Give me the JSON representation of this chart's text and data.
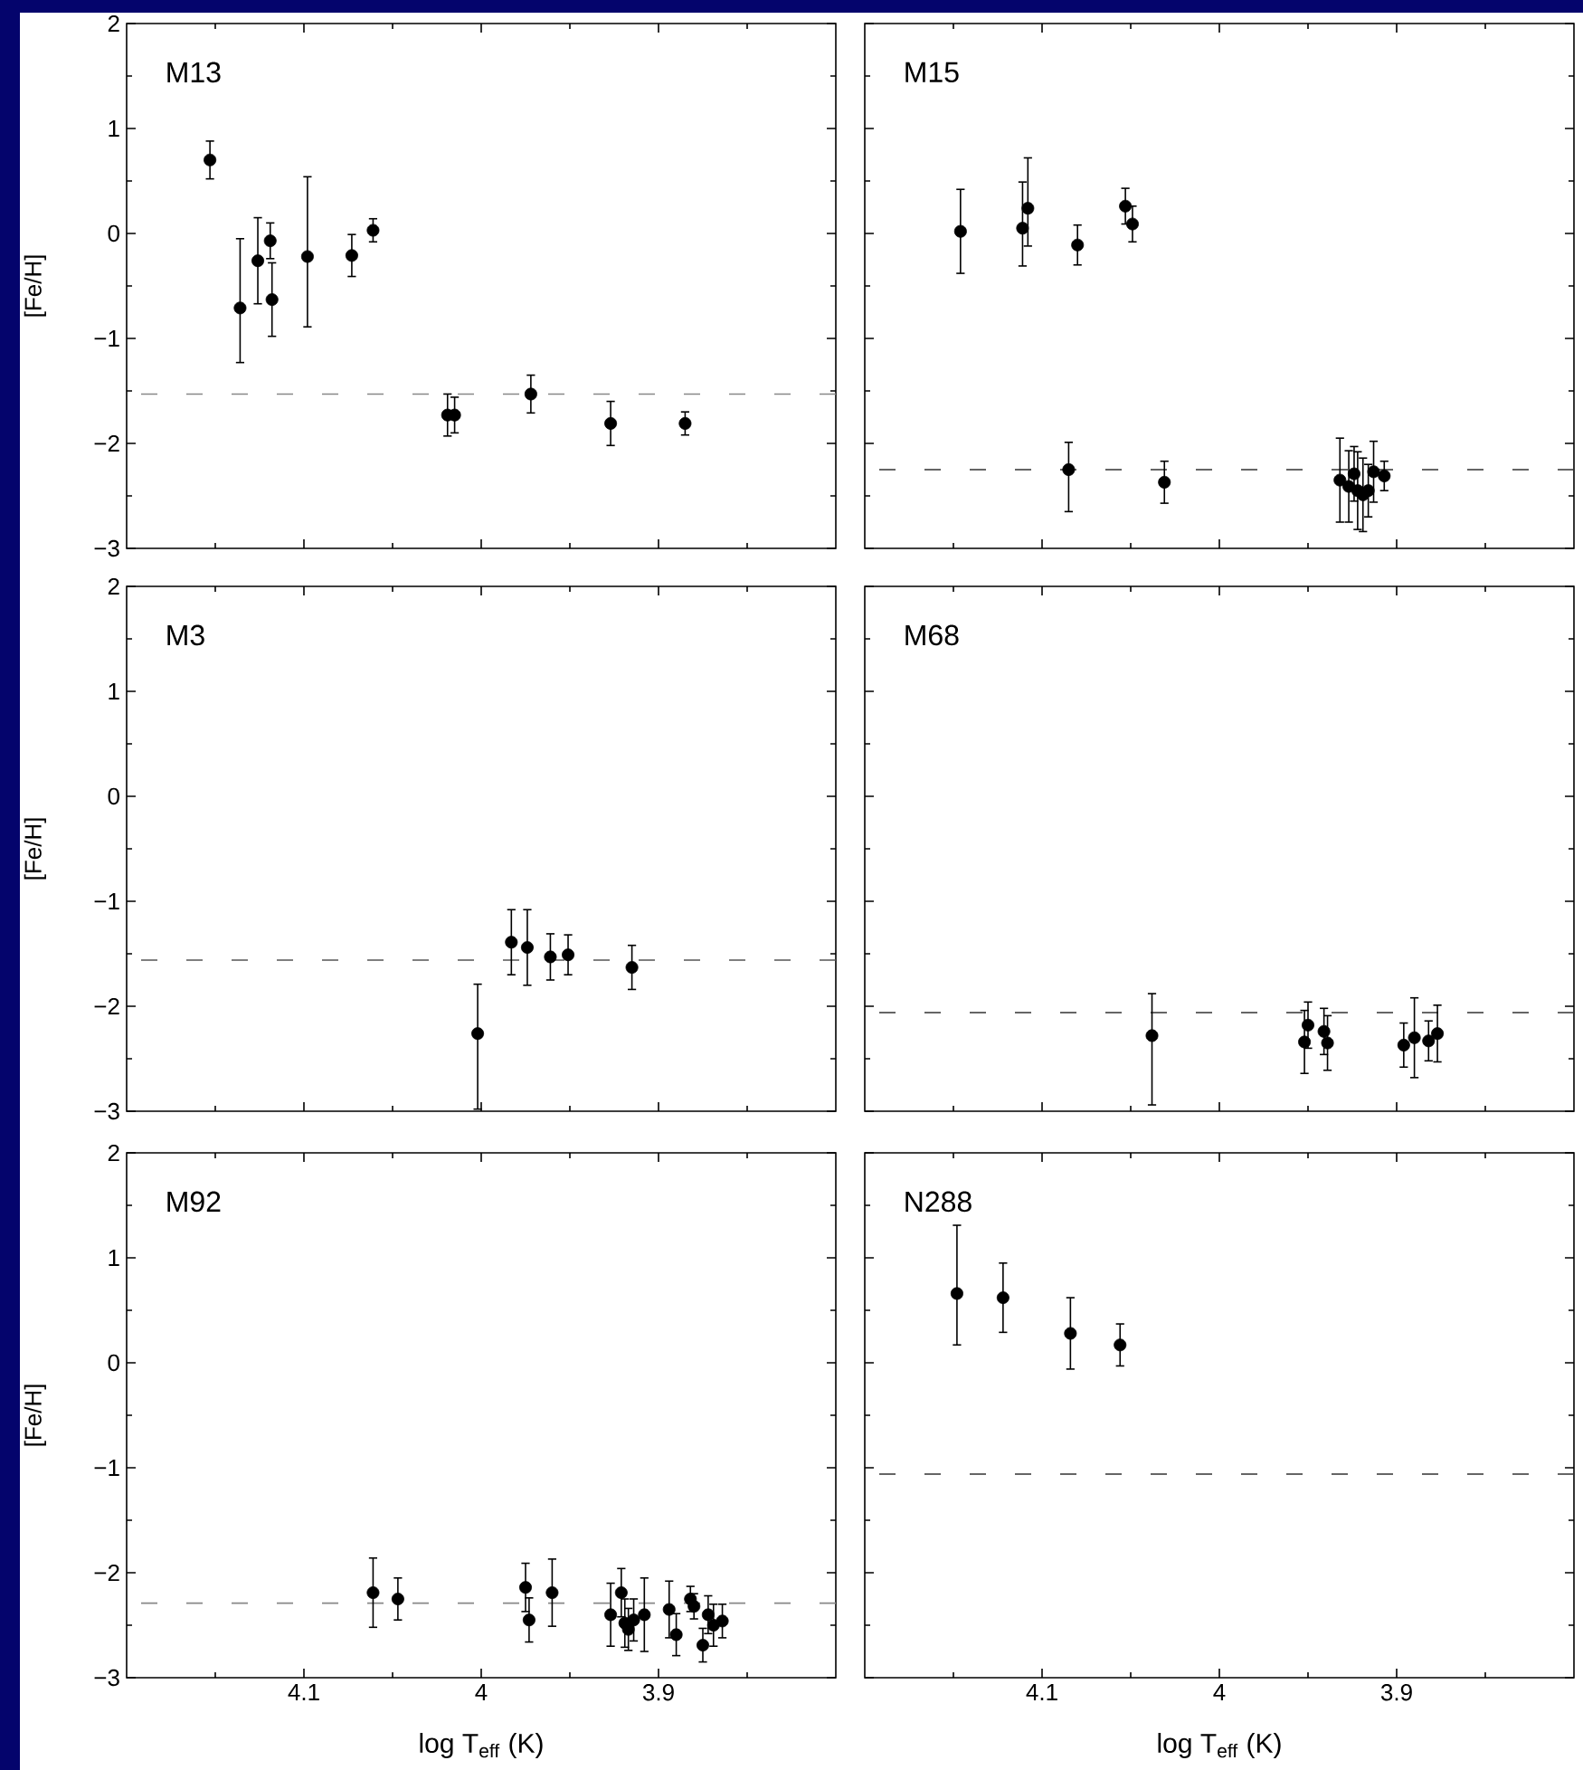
{
  "chart_data": [
    {
      "type": "scatter",
      "title": "M13",
      "ylabel": "[Fe/H]",
      "tick_labels": "y",
      "xlim": [
        4.2,
        3.8
      ],
      "xticks": [
        {
          "value": 4.15,
          "label": null
        },
        4.1,
        {
          "value": 4.05,
          "label": null
        },
        4,
        {
          "value": 3.95,
          "label": null
        },
        3.9,
        {
          "value": 3.85,
          "label": null
        }
      ],
      "ylim": [
        -3,
        2
      ],
      "yticks": [
        {
          "value": -3,
          "label": "−3"
        },
        {
          "value": -2.5,
          "label": null
        },
        {
          "value": -2,
          "label": "−2"
        },
        {
          "value": -1.5,
          "label": null
        },
        {
          "value": -1,
          "label": "−1"
        },
        {
          "value": -0.5,
          "label": null
        },
        0,
        {
          "value": 0.5,
          "label": null
        },
        1,
        {
          "value": 1.5,
          "label": null
        },
        2
      ],
      "ref_lines": [
        {
          "axis": "y",
          "value": -1.53,
          "line_style": "dashed",
          "color": "#888888"
        }
      ],
      "x": [
        4.153,
        4.136,
        4.126,
        4.119,
        4.118,
        4.098,
        4.073,
        4.061,
        4.019,
        4.015,
        3.972,
        3.927,
        3.885
      ],
      "series": [
        {
          "color": "#000000",
          "marker": "circle",
          "values": [
            0.7,
            -0.71,
            -0.26,
            -0.07,
            -0.63,
            -0.22,
            -0.21,
            0.03,
            -1.73,
            -1.73,
            -1.53,
            -1.81,
            -1.81
          ],
          "errors": [
            0.18,
            [
              -1.23,
              -0.05
            ],
            0.41,
            0.17,
            0.35,
            [
              -0.89,
              0.54
            ],
            0.2,
            0.11,
            0.2,
            0.17,
            0.18,
            0.21,
            0.11
          ]
        }
      ]
    },
    {
      "type": "scatter",
      "title": "M15",
      "tick_labels": false,
      "xlim": [
        4.2,
        3.8
      ],
      "xticks": [
        {
          "value": 4.15,
          "label": null
        },
        4.1,
        {
          "value": 4.05,
          "label": null
        },
        4,
        {
          "value": 3.95,
          "label": null
        },
        3.9,
        {
          "value": 3.85,
          "label": null
        }
      ],
      "ylim": [
        -3,
        2
      ],
      "yticks": [
        -3,
        {
          "value": -2.5,
          "label": null
        },
        -2,
        {
          "value": -1.5,
          "label": null
        },
        -1,
        {
          "value": -0.5,
          "label": null
        },
        0,
        {
          "value": 0.5,
          "label": null
        },
        1,
        {
          "value": 1.5,
          "label": null
        },
        2
      ],
      "ref_lines": [
        {
          "axis": "y",
          "value": -2.25,
          "line_style": "dashed",
          "color": "#333333"
        }
      ],
      "x": [
        4.146,
        4.111,
        4.108,
        4.08,
        4.053,
        4.049,
        4.085,
        4.031,
        3.932,
        3.927,
        3.924,
        3.922,
        3.919,
        3.916,
        3.913,
        3.907
      ],
      "series": [
        {
          "color": "#000000",
          "marker": "circle",
          "values": [
            0.02,
            0.05,
            0.24,
            -0.11,
            0.26,
            0.09,
            -2.25,
            -2.37,
            -2.35,
            -2.41,
            -2.29,
            -2.45,
            -2.49,
            -2.45,
            -2.27,
            -2.31
          ],
          "errors": [
            0.4,
            [
              -0.31,
              0.49
            ],
            [
              -0.12,
              0.72
            ],
            0.19,
            0.17,
            0.17,
            [
              -2.65,
              -1.99
            ],
            0.2,
            0.4,
            0.34,
            0.26,
            0.37,
            0.35,
            0.25,
            0.29,
            0.14
          ]
        }
      ]
    },
    {
      "type": "scatter",
      "title": "M3",
      "ylabel": "[Fe/H]",
      "tick_labels": "y",
      "xlim": [
        4.2,
        3.8
      ],
      "xticks": [
        {
          "value": 4.15,
          "label": null
        },
        4.1,
        {
          "value": 4.05,
          "label": null
        },
        4,
        {
          "value": 3.95,
          "label": null
        },
        3.9,
        {
          "value": 3.85,
          "label": null
        }
      ],
      "ylim": [
        -3,
        2
      ],
      "yticks": [
        {
          "value": -3,
          "label": "−3"
        },
        {
          "value": -2.5,
          "label": null
        },
        {
          "value": -2,
          "label": "−2"
        },
        {
          "value": -1.5,
          "label": null
        },
        {
          "value": -1,
          "label": "−1"
        },
        {
          "value": -0.5,
          "label": null
        },
        0,
        {
          "value": 0.5,
          "label": null
        },
        1,
        {
          "value": 1.5,
          "label": null
        },
        2
      ],
      "ref_lines": [
        {
          "axis": "y",
          "value": -1.56,
          "line_style": "dashed",
          "color": "#555555"
        }
      ],
      "x": [
        4.002,
        3.983,
        3.974,
        3.961,
        3.951,
        3.915
      ],
      "series": [
        {
          "color": "#000000",
          "marker": "circle",
          "values": [
            -2.26,
            -1.39,
            -1.44,
            -1.53,
            -1.51,
            -1.63
          ],
          "errors": [
            [
              -2.98,
              -1.79
            ],
            0.31,
            0.36,
            0.22,
            0.19,
            0.21
          ]
        }
      ]
    },
    {
      "type": "scatter",
      "title": "M68",
      "tick_labels": false,
      "xlim": [
        4.2,
        3.8
      ],
      "xticks": [
        {
          "value": 4.15,
          "label": null
        },
        4.1,
        {
          "value": 4.05,
          "label": null
        },
        4,
        {
          "value": 3.95,
          "label": null
        },
        3.9,
        {
          "value": 3.85,
          "label": null
        }
      ],
      "ylim": [
        -3,
        2
      ],
      "yticks": [
        -3,
        {
          "value": -2.5,
          "label": null
        },
        -2,
        {
          "value": -1.5,
          "label": null
        },
        -1,
        {
          "value": -0.5,
          "label": null
        },
        0,
        {
          "value": 0.5,
          "label": null
        },
        1,
        {
          "value": 1.5,
          "label": null
        },
        2
      ],
      "ref_lines": [
        {
          "axis": "y",
          "value": -2.06,
          "line_style": "dashed",
          "color": "#333333"
        }
      ],
      "x": [
        4.038,
        3.952,
        3.95,
        3.941,
        3.939,
        3.896,
        3.89,
        3.882,
        3.877
      ],
      "series": [
        {
          "color": "#000000",
          "marker": "circle",
          "values": [
            -2.28,
            -2.34,
            -2.18,
            -2.24,
            -2.35,
            -2.37,
            -2.3,
            -2.33,
            -2.26
          ],
          "errors": [
            [
              -2.94,
              -1.88
            ],
            0.3,
            0.22,
            0.22,
            0.26,
            0.21,
            0.38,
            0.19,
            0.27
          ]
        }
      ]
    },
    {
      "type": "scatter",
      "title": "M92",
      "ylabel": "[Fe/H]",
      "xlabel": "log T$_{eff}$ (K)",
      "xlim": [
        4.2,
        3.8
      ],
      "xticks": [
        {
          "value": 4.15,
          "label": null
        },
        4.1,
        {
          "value": 4.05,
          "label": null
        },
        4,
        {
          "value": 3.95,
          "label": null
        },
        3.9,
        {
          "value": 3.85,
          "label": null
        }
      ],
      "ylim": [
        -3,
        2
      ],
      "yticks": [
        {
          "value": -3,
          "label": "−3"
        },
        {
          "value": -2.5,
          "label": null
        },
        {
          "value": -2,
          "label": "−2"
        },
        {
          "value": -1.5,
          "label": null
        },
        {
          "value": -1,
          "label": "−1"
        },
        {
          "value": -0.5,
          "label": null
        },
        0,
        {
          "value": 0.5,
          "label": null
        },
        1,
        {
          "value": 1.5,
          "label": null
        },
        2
      ],
      "ref_lines": [
        {
          "axis": "y",
          "value": -2.29,
          "line_style": "dashed",
          "color": "#888888"
        }
      ],
      "x": [
        4.061,
        4.047,
        3.975,
        3.973,
        3.96,
        3.927,
        3.921,
        3.919,
        3.917,
        3.914,
        3.908,
        3.894,
        3.89,
        3.882,
        3.88,
        3.875,
        3.872,
        3.869,
        3.864
      ],
      "series": [
        {
          "color": "#000000",
          "marker": "circle",
          "values": [
            -2.19,
            -2.25,
            -2.14,
            -2.45,
            -2.19,
            -2.4,
            -2.19,
            -2.48,
            -2.54,
            -2.45,
            -2.4,
            -2.35,
            -2.59,
            -2.25,
            -2.32,
            -2.69,
            -2.4,
            -2.5,
            -2.46
          ],
          "errors": [
            0.33,
            0.2,
            0.23,
            0.21,
            0.32,
            0.3,
            0.23,
            0.23,
            0.2,
            0.2,
            0.35,
            0.27,
            0.2,
            0.12,
            0.12,
            0.16,
            0.18,
            0.2,
            0.16
          ]
        }
      ]
    },
    {
      "type": "scatter",
      "title": "N288",
      "xlabel": "log T$_{eff}$ (K)",
      "tick_labels": "x",
      "xlim": [
        4.2,
        3.8
      ],
      "xticks": [
        {
          "value": 4.15,
          "label": null
        },
        4.1,
        {
          "value": 4.05,
          "label": null
        },
        4,
        {
          "value": 3.95,
          "label": null
        },
        3.9,
        {
          "value": 3.85,
          "label": null
        }
      ],
      "ylim": [
        -3,
        2
      ],
      "yticks": [
        -3,
        {
          "value": -2.5,
          "label": null
        },
        -2,
        {
          "value": -1.5,
          "label": null
        },
        -1,
        {
          "value": -0.5,
          "label": null
        },
        0,
        {
          "value": 0.5,
          "label": null
        },
        1,
        {
          "value": 1.5,
          "label": null
        },
        2
      ],
      "ref_lines": [
        {
          "axis": "y",
          "value": -1.06,
          "line_style": "dashed",
          "color": "#333333"
        }
      ],
      "x": [
        4.148,
        4.122,
        4.084,
        4.056
      ],
      "series": [
        {
          "color": "#000000",
          "marker": "circle",
          "values": [
            0.66,
            0.62,
            0.28,
            0.17
          ],
          "errors": [
            [
              0.17,
              1.31
            ],
            0.33,
            0.34,
            0.2
          ]
        }
      ]
    }
  ]
}
